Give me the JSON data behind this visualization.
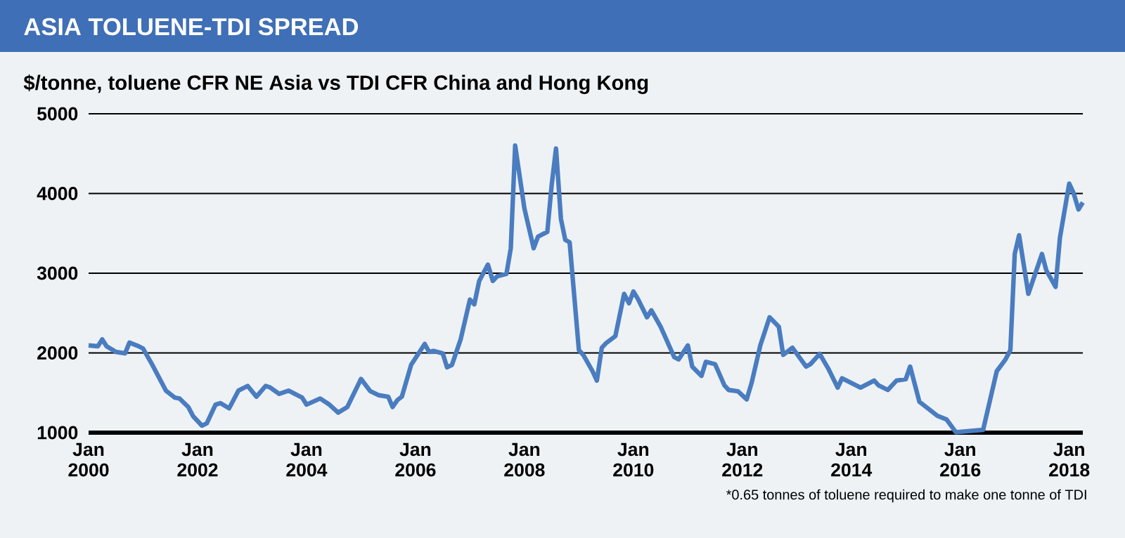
{
  "chart_data": {
    "type": "line",
    "title": "ASIA TOLUENE-TDI SPREAD",
    "subtitle": "$/tonne, toluene CFR NE Asia vs TDI CFR China and Hong Kong",
    "annotations": [
      "*0.65 tonnes of toluene required to make one tonne of TDI"
    ],
    "x": [
      "2000-01",
      "2000-03",
      "2000-04",
      "2000-05",
      "2000-07",
      "2000-09",
      "2000-10",
      "2000-12",
      "2001-01",
      "2001-03",
      "2001-06",
      "2001-08",
      "2001-09",
      "2001-11",
      "2001-12",
      "2002-02",
      "2002-03",
      "2002-05",
      "2002-06",
      "2002-08",
      "2002-10",
      "2002-12",
      "2003-02",
      "2003-04",
      "2003-05",
      "2003-07",
      "2003-09",
      "2003-12",
      "2004-01",
      "2004-04",
      "2004-06",
      "2004-08",
      "2004-10",
      "2005-01",
      "2005-03",
      "2005-05",
      "2005-07",
      "2005-08",
      "2005-09",
      "2005-10",
      "2005-12",
      "2006-03",
      "2006-04",
      "2006-05",
      "2006-07",
      "2006-08",
      "2006-09",
      "2006-11",
      "2007-01",
      "2007-02",
      "2007-03",
      "2007-05",
      "2007-06",
      "2007-07",
      "2007-09",
      "2007-10",
      "2007-11",
      "2008-01",
      "2008-03",
      "2008-04",
      "2008-06",
      "2008-07",
      "2008-08",
      "2008-09",
      "2008-10",
      "2008-11",
      "2009-01",
      "2009-02",
      "2009-04",
      "2009-05",
      "2009-06",
      "2009-07",
      "2009-09",
      "2009-11",
      "2009-12",
      "2010-01",
      "2010-02",
      "2010-04",
      "2010-05",
      "2010-07",
      "2010-10",
      "2010-11",
      "2011-01",
      "2011-02",
      "2011-04",
      "2011-05",
      "2011-07",
      "2011-09",
      "2011-10",
      "2011-12",
      "2012-02",
      "2012-03",
      "2012-05",
      "2012-07",
      "2012-09",
      "2012-10",
      "2012-12",
      "2013-03",
      "2013-04",
      "2013-06",
      "2013-08",
      "2013-10",
      "2013-11",
      "2014-03",
      "2014-06",
      "2014-07",
      "2014-09",
      "2014-11",
      "2015-01",
      "2015-02",
      "2015-04",
      "2015-08",
      "2015-10",
      "2015-12",
      "2016-06",
      "2016-09",
      "2016-11",
      "2016-12",
      "2017-01",
      "2017-02",
      "2017-04",
      "2017-07",
      "2017-08",
      "2017-10",
      "2017-11",
      "2018-01",
      "2018-02",
      "2018-03",
      "2018-04"
    ],
    "series": [
      {
        "color": "#4a7cc0",
        "values": [
          2095,
          2084,
          2170,
          2084,
          2013,
          1995,
          2130,
          2084,
          2055,
          1850,
          1527,
          1440,
          1428,
          1322,
          1205,
          1088,
          1117,
          1351,
          1370,
          1305,
          1527,
          1586,
          1451,
          1586,
          1568,
          1486,
          1527,
          1440,
          1352,
          1428,
          1352,
          1252,
          1322,
          1674,
          1521,
          1469,
          1451,
          1322,
          1410,
          1451,
          1850,
          2113,
          2013,
          2025,
          1995,
          1820,
          1850,
          2171,
          2669,
          2610,
          2903,
          3108,
          2903,
          2962,
          2991,
          3313,
          4602,
          3811,
          3313,
          3460,
          3518,
          4104,
          4565,
          3682,
          3418,
          3388,
          2035,
          1976,
          1771,
          1653,
          2065,
          2124,
          2212,
          2741,
          2624,
          2771,
          2682,
          2447,
          2535,
          2329,
          1947,
          1918,
          2094,
          1829,
          1712,
          1888,
          1859,
          1594,
          1535,
          1518,
          1418,
          1624,
          2094,
          2447,
          2329,
          1976,
          2065,
          1829,
          1859,
          1988,
          1800,
          1565,
          1682,
          1565,
          1653,
          1594,
          1535,
          1653,
          1671,
          1829,
          1388,
          1212,
          1165,
          1006,
          1035,
          1771,
          1918,
          2035,
          3241,
          3476,
          2741,
          3241,
          3035,
          2829,
          3447,
          4124,
          4006,
          3800,
          3888
        ]
      }
    ],
    "xlim": [
      "2000-01",
      "2018-04"
    ],
    "xticks": [
      {
        "value": "2000-01",
        "label": "Jan 2000"
      },
      {
        "value": "2002-01",
        "label": "Jan 2002"
      },
      {
        "value": "2004-01",
        "label": "Jan 2004"
      },
      {
        "value": "2006-01",
        "label": "Jan 2006"
      },
      {
        "value": "2008-01",
        "label": "Jan 2008"
      },
      {
        "value": "2010-01",
        "label": "Jan 2010"
      },
      {
        "value": "2012-01",
        "label": "Jan 2012"
      },
      {
        "value": "2014-01",
        "label": "Jan 2014"
      },
      {
        "value": "2016-01",
        "label": "Jan 2016"
      },
      {
        "value": "2018-01",
        "label": "Jan 2018"
      }
    ],
    "ylim": [
      1000,
      5000
    ],
    "yticks": [
      1000,
      2000,
      3000,
      4000,
      5000
    ],
    "grid": "y"
  }
}
